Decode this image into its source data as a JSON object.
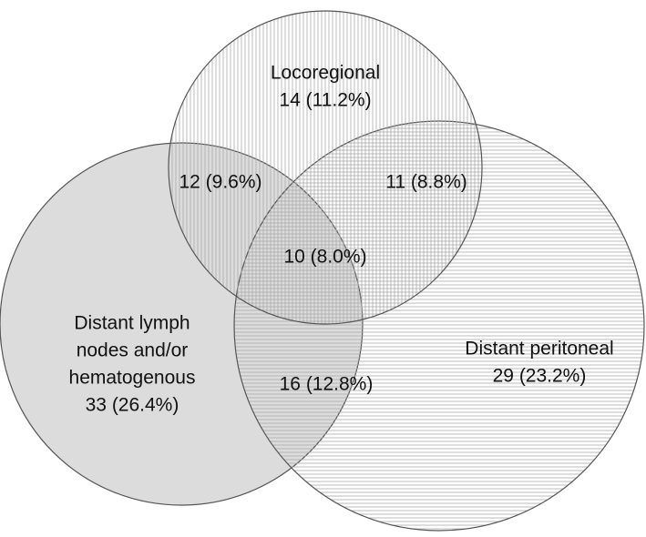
{
  "sets": [
    {
      "label": [
        "Locoregional"
      ],
      "count": "14 (11.2%)"
    },
    {
      "label": [
        "Distant lymph",
        "nodes and/or",
        "hematogenous"
      ],
      "count": "33 (26.4%)"
    },
    {
      "label": [
        "Distant peritoneal"
      ],
      "count": "29 (23.2%)"
    }
  ],
  "overlaps": [
    "12 (9.6%)",
    "11 (8.8%)",
    "10 (8.0%)",
    "16 (12.8%)"
  ]
}
